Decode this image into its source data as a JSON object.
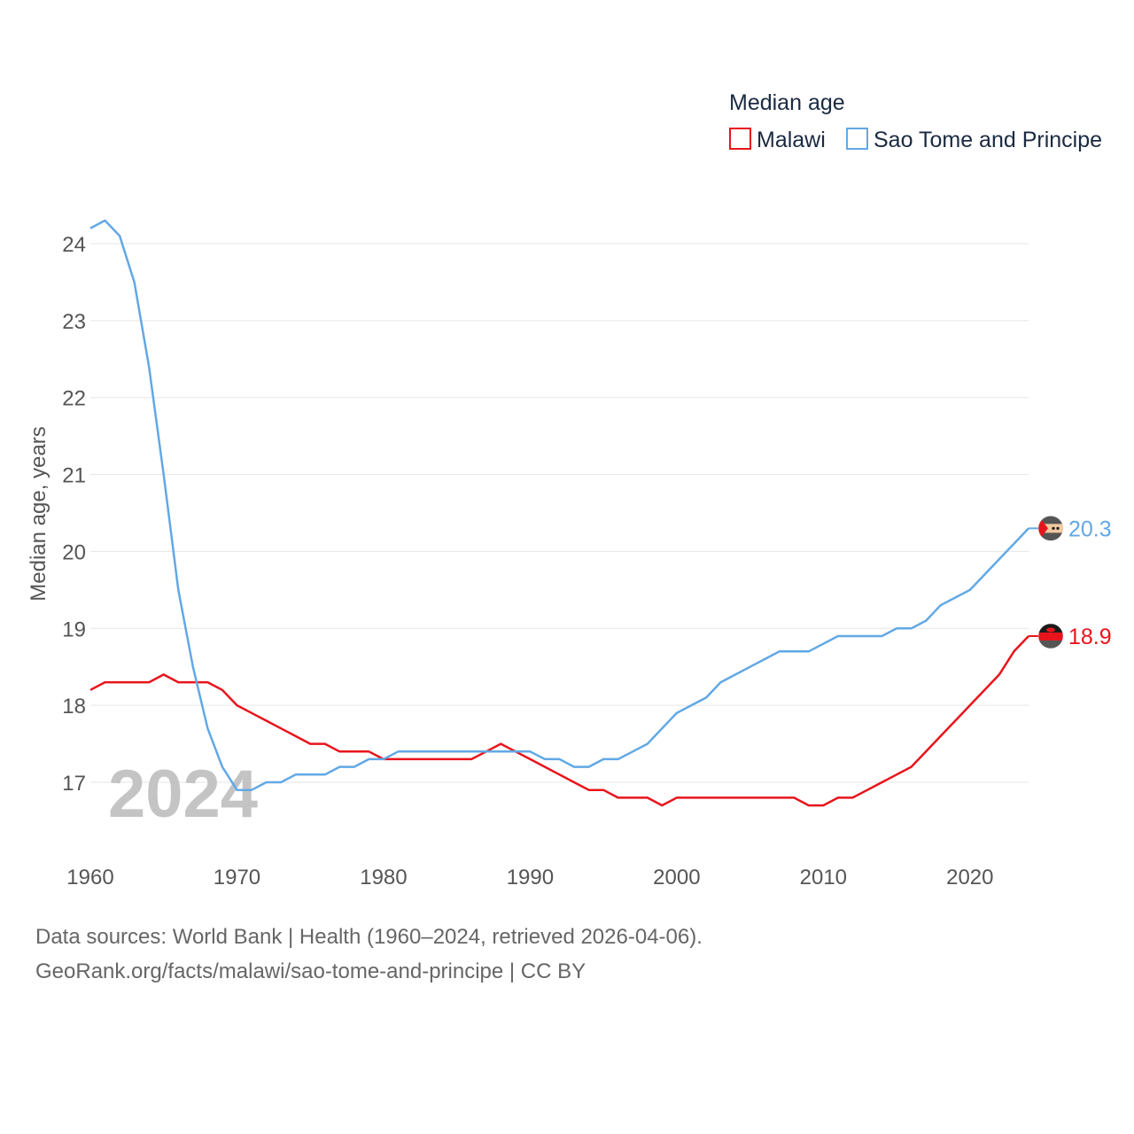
{
  "chart_data": {
    "type": "line",
    "legend_title": "Median age",
    "ylabel": "Median age, years",
    "xlim": [
      1960,
      2024
    ],
    "ylim": [
      16.1,
      24.7
    ],
    "yticks": [
      17,
      18,
      19,
      20,
      21,
      22,
      23,
      24
    ],
    "xticks": [
      1960,
      1970,
      1980,
      1990,
      2000,
      2010,
      2020
    ],
    "year_watermark": "2024",
    "x": [
      1960,
      1961,
      1962,
      1963,
      1964,
      1965,
      1966,
      1967,
      1968,
      1969,
      1970,
      1971,
      1972,
      1973,
      1974,
      1975,
      1976,
      1977,
      1978,
      1979,
      1980,
      1981,
      1982,
      1983,
      1984,
      1985,
      1986,
      1987,
      1988,
      1989,
      1990,
      1991,
      1992,
      1993,
      1994,
      1995,
      1996,
      1997,
      1998,
      1999,
      2000,
      2001,
      2002,
      2003,
      2004,
      2005,
      2006,
      2007,
      2008,
      2009,
      2010,
      2011,
      2012,
      2013,
      2014,
      2015,
      2016,
      2017,
      2018,
      2019,
      2020,
      2021,
      2022,
      2023,
      2024
    ],
    "series": [
      {
        "name": "Malawi",
        "color": "#e8141c",
        "end_label": "18.9",
        "values": [
          18.2,
          18.3,
          18.3,
          18.3,
          18.3,
          18.4,
          18.3,
          18.3,
          18.3,
          18.2,
          18.0,
          17.9,
          17.8,
          17.7,
          17.6,
          17.5,
          17.5,
          17.4,
          17.4,
          17.4,
          17.3,
          17.3,
          17.3,
          17.3,
          17.3,
          17.3,
          17.3,
          17.4,
          17.5,
          17.4,
          17.3,
          17.2,
          17.1,
          17.0,
          16.9,
          16.9,
          16.8,
          16.8,
          16.8,
          16.7,
          16.8,
          16.8,
          16.8,
          16.8,
          16.8,
          16.8,
          16.8,
          16.8,
          16.8,
          16.7,
          16.7,
          16.8,
          16.8,
          16.9,
          17.0,
          17.1,
          17.2,
          17.4,
          17.6,
          17.8,
          18.0,
          18.2,
          18.4,
          18.7,
          18.9
        ]
      },
      {
        "name": "Sao Tome and Principe",
        "color": "#62a8e5",
        "end_label": "20.3",
        "values": [
          24.2,
          24.3,
          24.1,
          23.5,
          22.4,
          21.0,
          19.5,
          18.5,
          17.7,
          17.2,
          16.9,
          16.9,
          17.0,
          17.0,
          17.1,
          17.1,
          17.1,
          17.2,
          17.2,
          17.3,
          17.3,
          17.4,
          17.4,
          17.4,
          17.4,
          17.4,
          17.4,
          17.4,
          17.4,
          17.4,
          17.4,
          17.3,
          17.3,
          17.2,
          17.2,
          17.3,
          17.3,
          17.4,
          17.5,
          17.7,
          17.9,
          18.0,
          18.1,
          18.3,
          18.4,
          18.5,
          18.6,
          18.7,
          18.7,
          18.7,
          18.8,
          18.9,
          18.9,
          18.9,
          18.9,
          19.0,
          19.0,
          19.1,
          19.3,
          19.4,
          19.5,
          19.7,
          19.9,
          20.1,
          20.3
        ]
      }
    ]
  },
  "footer": {
    "source": "Data sources: World Bank | Health (1960–2024, retrieved 2026-04-06).",
    "link": "GeoRank.org/facts/malawi/sao-tome-and-principe | CC BY"
  }
}
